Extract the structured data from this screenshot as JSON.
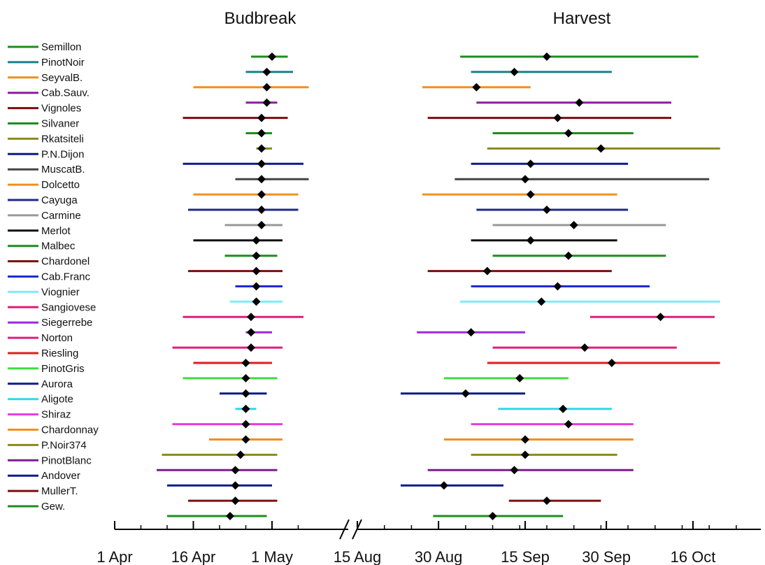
{
  "chart_data": {
    "type": "range-dot",
    "panels": [
      {
        "title": "Budbreak"
      },
      {
        "title": "Harvest"
      }
    ],
    "x_axis": {
      "scale": "date",
      "broken": true,
      "break_between": [
        "1 May",
        "15 Aug"
      ],
      "tick_labels": [
        "1 Apr",
        "16 Apr",
        "1 May",
        "15 Aug",
        "30 Aug",
        "15 Sep",
        "30 Sep",
        "16 Oct"
      ]
    },
    "series": [
      {
        "name": "Semillon",
        "color": "#1e8c1e",
        "budbreak": {
          "start": "Apr 27",
          "mean": "May 1",
          "end": "May 4"
        },
        "harvest": {
          "start": "Sep 3",
          "mean": "Sep 19",
          "end": "Oct 17"
        }
      },
      {
        "name": "PinotNoir",
        "color": "#1a7f86",
        "budbreak": {
          "start": "Apr 26",
          "mean": "Apr 30",
          "end": "May 5"
        },
        "harvest": {
          "start": "Sep 5",
          "mean": "Sep 13",
          "end": "Oct 1"
        }
      },
      {
        "name": "SeyvalB.",
        "color": "#f0901e",
        "budbreak": {
          "start": "Apr 16",
          "mean": "Apr 30",
          "end": "May 8"
        },
        "harvest": {
          "start": "Aug 27",
          "mean": "Sep 6",
          "end": "Sep 16"
        }
      },
      {
        "name": "Cab.Sauv.",
        "color": "#8a1e9a",
        "budbreak": {
          "start": "Apr 26",
          "mean": "Apr 30",
          "end": "May 2"
        },
        "harvest": {
          "start": "Sep 6",
          "mean": "Sep 25",
          "end": "Oct 12"
        }
      },
      {
        "name": "Vignoles",
        "color": "#7a0f0f",
        "budbreak": {
          "start": "Apr 14",
          "mean": "Apr 29",
          "end": "May 4"
        },
        "harvest": {
          "start": "Aug 28",
          "mean": "Sep 21",
          "end": "Oct 12"
        }
      },
      {
        "name": "Silvaner",
        "color": "#1e8c1e",
        "budbreak": {
          "start": "Apr 26",
          "mean": "Apr 29",
          "end": "May 1"
        },
        "harvest": {
          "start": "Sep 9",
          "mean": "Sep 23",
          "end": "Oct 5"
        }
      },
      {
        "name": "Rkatsiteli",
        "color": "#8a8a1e",
        "budbreak": {
          "start": "Apr 28",
          "mean": "Apr 29",
          "end": "May 1"
        },
        "harvest": {
          "start": "Sep 8",
          "mean": "Sep 29",
          "end": "Oct 21"
        }
      },
      {
        "name": "P.N.Dijon",
        "color": "#0f1a8a",
        "budbreak": {
          "start": "Apr 14",
          "mean": "Apr 29",
          "end": "May 7"
        },
        "harvest": {
          "start": "Sep 5",
          "mean": "Sep 16",
          "end": "Oct 4"
        }
      },
      {
        "name": "MuscatB.",
        "color": "#444444",
        "budbreak": {
          "start": "Apr 24",
          "mean": "Apr 29",
          "end": "May 8"
        },
        "harvest": {
          "start": "Sep 2",
          "mean": "Sep 15",
          "end": "Oct 19"
        }
      },
      {
        "name": "Dolcetto",
        "color": "#f0901e",
        "budbreak": {
          "start": "Apr 16",
          "mean": "Apr 29",
          "end": "May 6"
        },
        "harvest": {
          "start": "Aug 27",
          "mean": "Sep 16",
          "end": "Oct 2"
        }
      },
      {
        "name": "Cayuga",
        "color": "#1e2a8a",
        "budbreak": {
          "start": "Apr 15",
          "mean": "Apr 29",
          "end": "May 6"
        },
        "harvest": {
          "start": "Sep 6",
          "mean": "Sep 19",
          "end": "Oct 4"
        }
      },
      {
        "name": "Carmine",
        "color": "#999999",
        "budbreak": {
          "start": "Apr 22",
          "mean": "Apr 29",
          "end": "May 3"
        },
        "harvest": {
          "start": "Sep 9",
          "mean": "Sep 24",
          "end": "Oct 11"
        }
      },
      {
        "name": "Merlot",
        "color": "#111111",
        "budbreak": {
          "start": "Apr 16",
          "mean": "Apr 28",
          "end": "May 3"
        },
        "harvest": {
          "start": "Sep 5",
          "mean": "Sep 16",
          "end": "Oct 2"
        }
      },
      {
        "name": "Malbec",
        "color": "#1e8c1e",
        "budbreak": {
          "start": "Apr 22",
          "mean": "Apr 28",
          "end": "May 2"
        },
        "harvest": {
          "start": "Sep 9",
          "mean": "Sep 23",
          "end": "Oct 11"
        }
      },
      {
        "name": "Chardonel",
        "color": "#7a0f0f",
        "budbreak": {
          "start": "Apr 15",
          "mean": "Apr 28",
          "end": "May 3"
        },
        "harvest": {
          "start": "Aug 28",
          "mean": "Sep 8",
          "end": "Oct 1"
        }
      },
      {
        "name": "Cab.Franc",
        "color": "#1e2ad6",
        "budbreak": {
          "start": "Apr 24",
          "mean": "Apr 28",
          "end": "May 3"
        },
        "harvest": {
          "start": "Sep 5",
          "mean": "Sep 21",
          "end": "Oct 8"
        }
      },
      {
        "name": "Viognier",
        "color": "#80ecf4",
        "budbreak": {
          "start": "Apr 23",
          "mean": "Apr 28",
          "end": "May 3"
        },
        "harvest": {
          "start": "Sep 3",
          "mean": "Sep 18",
          "end": "Oct 21"
        }
      },
      {
        "name": "Sangiovese",
        "color": "#e01e7a",
        "budbreak": {
          "start": "Apr 14",
          "mean": "Apr 27",
          "end": "May 7"
        },
        "harvest": {
          "start": "Sep 27",
          "mean": "Oct 10",
          "end": "Oct 20"
        }
      },
      {
        "name": "Siegerrebe",
        "color": "#9a2ae0",
        "budbreak": {
          "start": "Apr 26",
          "mean": "Apr 27",
          "end": "May 1"
        },
        "harvest": {
          "start": "Aug 26",
          "mean": "Sep 5",
          "end": "Sep 15"
        }
      },
      {
        "name": "Norton",
        "color": "#e01e7a",
        "budbreak": {
          "start": "Apr 12",
          "mean": "Apr 27",
          "end": "May 3"
        },
        "harvest": {
          "start": "Sep 9",
          "mean": "Sep 26",
          "end": "Oct 13"
        }
      },
      {
        "name": "Riesling",
        "color": "#e01e1e",
        "budbreak": {
          "start": "Apr 16",
          "mean": "Apr 26",
          "end": "May 1"
        },
        "harvest": {
          "start": "Sep 8",
          "mean": "Oct 1",
          "end": "Oct 21"
        }
      },
      {
        "name": "PinotGris",
        "color": "#3ae03a",
        "budbreak": {
          "start": "Apr 14",
          "mean": "Apr 26",
          "end": "May 2"
        },
        "harvest": {
          "start": "Aug 31",
          "mean": "Sep 14",
          "end": "Sep 23"
        }
      },
      {
        "name": "Aurora",
        "color": "#0f1a8a",
        "budbreak": {
          "start": "Apr 21",
          "mean": "Apr 26",
          "end": "Apr 30"
        },
        "harvest": {
          "start": "Aug 23",
          "mean": "Sep 4",
          "end": "Sep 15"
        }
      },
      {
        "name": "Aligote",
        "color": "#30d8e8",
        "budbreak": {
          "start": "Apr 24",
          "mean": "Apr 26",
          "end": "Apr 28"
        },
        "harvest": {
          "start": "Sep 10",
          "mean": "Sep 22",
          "end": "Oct 1"
        }
      },
      {
        "name": "Shiraz",
        "color": "#e83ae0",
        "budbreak": {
          "start": "Apr 12",
          "mean": "Apr 26",
          "end": "May 3"
        },
        "harvest": {
          "start": "Sep 5",
          "mean": "Sep 23",
          "end": "Oct 5"
        }
      },
      {
        "name": "Chardonnay",
        "color": "#f0901e",
        "budbreak": {
          "start": "Apr 19",
          "mean": "Apr 26",
          "end": "May 3"
        },
        "harvest": {
          "start": "Aug 31",
          "mean": "Sep 15",
          "end": "Oct 5"
        }
      },
      {
        "name": "P.Noir374",
        "color": "#8a8a1e",
        "budbreak": {
          "start": "Apr 10",
          "mean": "Apr 25",
          "end": "May 2"
        },
        "harvest": {
          "start": "Sep 5",
          "mean": "Sep 15",
          "end": "Oct 2"
        }
      },
      {
        "name": "PinotBlanc",
        "color": "#7a1e8a",
        "budbreak": {
          "start": "Apr 9",
          "mean": "Apr 24",
          "end": "May 2"
        },
        "harvest": {
          "start": "Aug 28",
          "mean": "Sep 13",
          "end": "Oct 5"
        }
      },
      {
        "name": "Andover",
        "color": "#0f1a8a",
        "budbreak": {
          "start": "Apr 11",
          "mean": "Apr 24",
          "end": "May 1"
        },
        "harvest": {
          "start": "Aug 23",
          "mean": "Aug 31",
          "end": "Sep 11"
        }
      },
      {
        "name": "MullerT.",
        "color": "#7a0f0f",
        "budbreak": {
          "start": "Apr 15",
          "mean": "Apr 24",
          "end": "May 2"
        },
        "harvest": {
          "start": "Sep 12",
          "mean": "Sep 19",
          "end": "Sep 29"
        }
      },
      {
        "name": "Gew.",
        "color": "#1e8c1e",
        "budbreak": {
          "start": "Apr 11",
          "mean": "Apr 23",
          "end": "Apr 30"
        },
        "harvest": {
          "start": "Aug 29",
          "mean": "Sep 9",
          "end": "Sep 22"
        }
      }
    ]
  }
}
